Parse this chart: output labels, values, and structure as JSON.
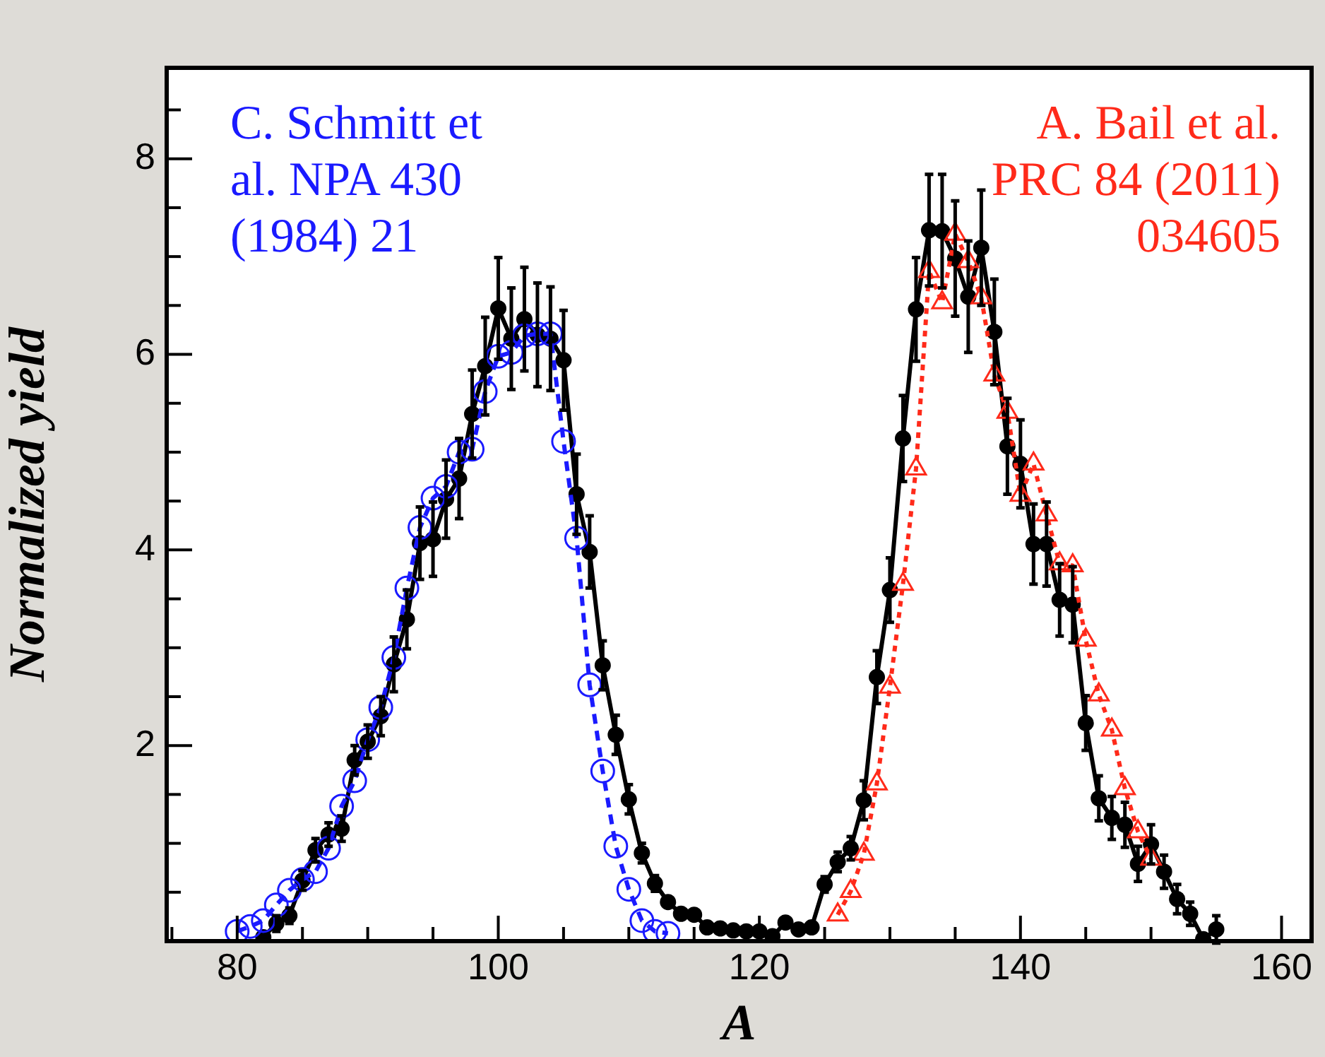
{
  "chart_data": {
    "type": "line",
    "xlabel": "A",
    "ylabel": "Normalized yield",
    "xlim": [
      74.6,
      162.3
    ],
    "ylim": [
      0,
      8.93
    ],
    "xticks": [
      {
        "value": 75,
        "label": null
      },
      80,
      {
        "value": 85,
        "label": null
      },
      {
        "value": 90,
        "label": null
      },
      {
        "value": 95,
        "label": null
      },
      100,
      {
        "value": 105,
        "label": null
      },
      {
        "value": 110,
        "label": null
      },
      {
        "value": 115,
        "label": null
      },
      120,
      {
        "value": 125,
        "label": null
      },
      {
        "value": 130,
        "label": null
      },
      {
        "value": 135,
        "label": null
      },
      140,
      {
        "value": 145,
        "label": null
      },
      {
        "value": 150,
        "label": null
      },
      {
        "value": 155,
        "label": null
      },
      160
    ],
    "yticks": [
      {
        "value": 0,
        "label": null
      },
      {
        "value": 0.5,
        "label": null
      },
      {
        "value": 1,
        "label": null
      },
      {
        "value": 1.5,
        "label": null
      },
      2,
      {
        "value": 2.5,
        "label": null
      },
      {
        "value": 3,
        "label": null
      },
      {
        "value": 3.5,
        "label": null
      },
      4,
      {
        "value": 4.5,
        "label": null
      },
      {
        "value": 5,
        "label": null
      },
      {
        "value": 5.5,
        "label": null
      },
      6,
      {
        "value": 6.5,
        "label": null
      },
      {
        "value": 7,
        "label": null
      },
      {
        "value": 7.5,
        "label": null
      },
      8,
      {
        "value": 8.5,
        "label": null
      }
    ],
    "grid": false,
    "series": [
      {
        "color": "#000000",
        "marker": "circle",
        "line_style": "solid",
        "x": [
          82,
          83,
          84,
          85,
          86,
          87,
          88,
          89,
          90,
          91,
          92,
          93,
          94,
          95,
          96,
          97,
          98,
          99,
          100,
          101,
          102,
          103,
          104,
          105,
          106,
          107,
          108,
          109,
          110,
          111,
          112,
          113,
          114,
          115,
          116,
          117,
          118,
          119,
          120,
          121,
          122,
          123,
          124,
          125,
          126,
          127,
          128,
          129,
          130,
          131,
          132,
          133,
          134,
          135,
          136,
          137,
          138,
          139,
          140,
          141,
          142,
          143,
          144,
          145,
          146,
          147,
          148,
          149,
          150,
          151,
          152,
          153,
          154,
          155
        ],
        "values": [
          0.04,
          0.18,
          0.26,
          0.62,
          0.93,
          1.09,
          1.15,
          1.85,
          2.04,
          2.3,
          2.83,
          3.29,
          4.07,
          4.11,
          4.52,
          4.73,
          5.39,
          5.88,
          6.47,
          6.16,
          6.36,
          6.2,
          6.16,
          5.94,
          4.57,
          3.98,
          2.82,
          2.11,
          1.45,
          0.9,
          0.59,
          0.4,
          0.28,
          0.27,
          0.14,
          0.13,
          0.11,
          0.1,
          0.1,
          0.05,
          0.19,
          0.12,
          0.14,
          0.58,
          0.81,
          0.95,
          1.44,
          2.7,
          3.59,
          5.14,
          6.46,
          7.27,
          7.26,
          6.98,
          6.59,
          7.09,
          6.23,
          5.06,
          4.88,
          4.06,
          4.06,
          3.49,
          3.44,
          2.23,
          1.46,
          1.26,
          1.19,
          0.79,
          0.99,
          0.71,
          0.43,
          0.28,
          0.02,
          0.12
        ],
        "errors": [
          null,
          0.08,
          0.08,
          0.1,
          0.12,
          0.12,
          0.13,
          0.15,
          0.17,
          0.2,
          0.28,
          0.3,
          0.37,
          0.38,
          0.4,
          0.41,
          0.45,
          0.5,
          0.52,
          0.52,
          0.53,
          0.53,
          0.53,
          0.51,
          0.41,
          0.37,
          0.25,
          0.2,
          0.15,
          0.1,
          0.08,
          null,
          null,
          null,
          null,
          null,
          null,
          null,
          null,
          null,
          null,
          null,
          null,
          0.08,
          0.1,
          0.12,
          0.2,
          0.27,
          0.33,
          0.44,
          0.53,
          0.57,
          0.58,
          0.59,
          0.57,
          0.59,
          0.54,
          0.49,
          0.45,
          0.41,
          0.43,
          0.37,
          0.39,
          0.28,
          0.23,
          0.22,
          0.23,
          0.18,
          0.2,
          0.17,
          0.15,
          0.12,
          null,
          0.14
        ]
      },
      {
        "name": "C. Schmitt et al. NPA 430 (1984) 21",
        "color": "#1a1aff",
        "marker": "circle",
        "line_style": "dashed",
        "x": [
          80,
          81,
          82,
          83,
          84,
          85,
          86,
          87,
          88,
          89,
          90,
          91,
          92,
          93,
          94,
          95,
          96,
          97,
          98,
          99,
          100,
          101,
          102,
          103,
          104,
          105,
          106,
          107,
          108,
          109,
          110,
          111,
          112,
          113
        ],
        "values": [
          0.1,
          0.15,
          0.21,
          0.37,
          0.52,
          0.63,
          0.71,
          0.95,
          1.38,
          1.64,
          2.06,
          2.39,
          2.9,
          3.61,
          4.23,
          4.53,
          4.65,
          5.0,
          5.03,
          5.62,
          5.98,
          6.02,
          6.19,
          6.21,
          6.21,
          5.11,
          4.12,
          2.62,
          1.74,
          0.97,
          0.53,
          0.21,
          0.1,
          0.08
        ]
      },
      {
        "name": "A. Bail et al. PRC 84 (2011) 034605",
        "color": "#ff2a1a",
        "marker": "triangle",
        "line_style": "dotted",
        "x": [
          126,
          127,
          128,
          129,
          130,
          131,
          132,
          133,
          134,
          135,
          136,
          137,
          138,
          139,
          140,
          141,
          142,
          143,
          144,
          145,
          146,
          147,
          148,
          149,
          150
        ],
        "values": [
          0.27,
          0.51,
          0.89,
          1.61,
          2.6,
          3.65,
          4.83,
          6.85,
          6.53,
          7.23,
          6.95,
          6.58,
          5.79,
          5.41,
          4.56,
          4.88,
          4.36,
          3.86,
          3.84,
          3.08,
          2.52,
          2.16,
          1.56,
          1.12,
          0.84
        ]
      }
    ]
  }
}
